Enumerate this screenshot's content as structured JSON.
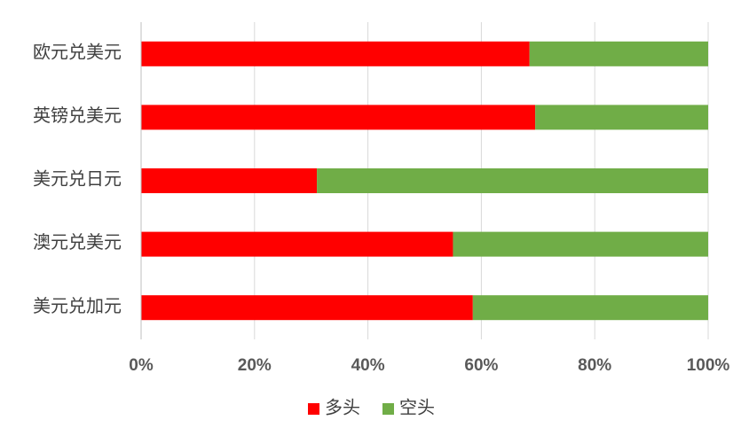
{
  "chart_data": {
    "type": "stacked-bar-horizontal",
    "categories": [
      "欧元兑美元",
      "英镑兑美元",
      "美元兑日元",
      "澳元兑美元",
      "美元兑加元"
    ],
    "series": [
      {
        "name": "多头",
        "color": "#ff0000",
        "values": [
          68.5,
          69.5,
          31,
          55,
          58.5
        ]
      },
      {
        "name": "空头",
        "color": "#70ad47",
        "values": [
          31.5,
          30.5,
          69,
          45,
          41.5
        ]
      }
    ],
    "xlim": [
      0,
      100
    ],
    "xticks": [
      {
        "value": 0,
        "label": "0%"
      },
      {
        "value": 20,
        "label": "20%"
      },
      {
        "value": 40,
        "label": "40%"
      },
      {
        "value": 60,
        "label": "60%"
      },
      {
        "value": 80,
        "label": "80%"
      },
      {
        "value": 100,
        "label": "100%"
      }
    ],
    "grid": true,
    "legend": "bottom"
  }
}
